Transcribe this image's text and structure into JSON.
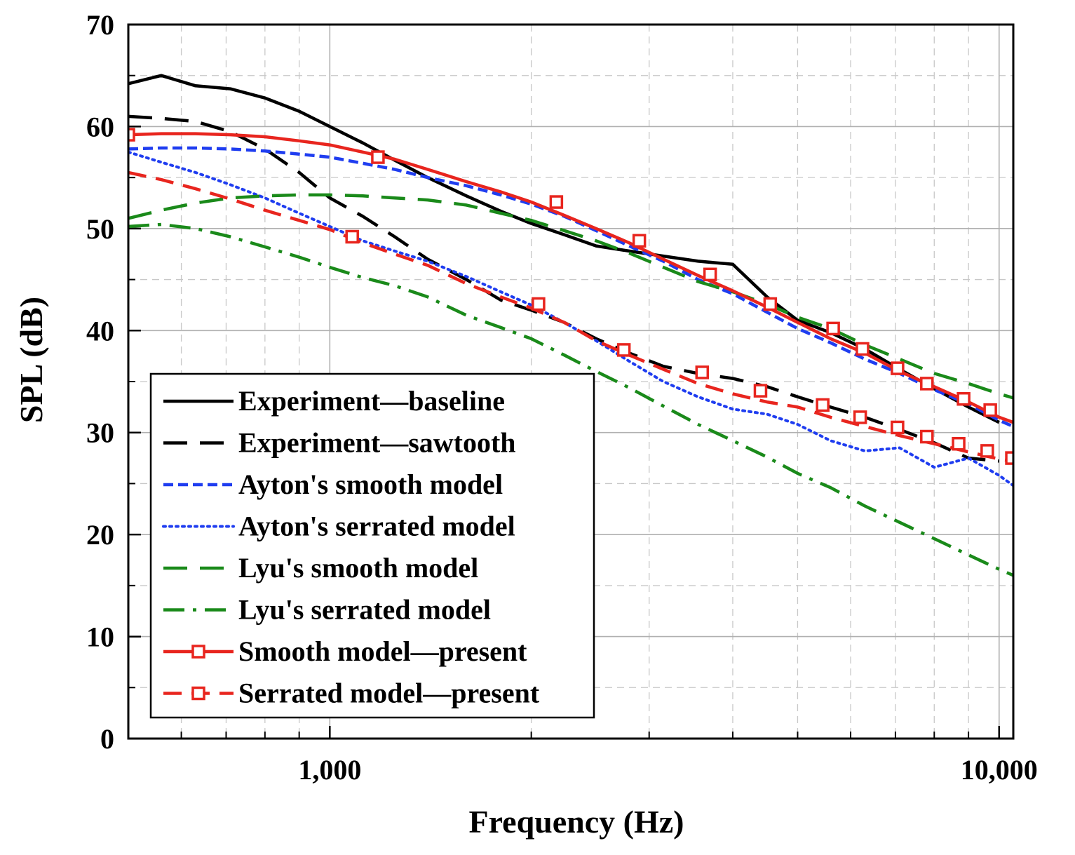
{
  "chart_data": {
    "type": "line",
    "title": "",
    "xlabel": "Frequency (Hz)",
    "ylabel": "SPL (dB)",
    "xscale": "log",
    "xlim": [
      500,
      10500
    ],
    "ylim": [
      0,
      70
    ],
    "grid": true,
    "legend_position": "lower-left",
    "x_major_ticks": [
      {
        "value": 1000,
        "label": "1,000"
      },
      {
        "value": 10000,
        "label": "10,000"
      }
    ],
    "y_ticks": [
      {
        "value": 0,
        "label": "0"
      },
      {
        "value": 10,
        "label": "10"
      },
      {
        "value": 20,
        "label": "20"
      },
      {
        "value": 30,
        "label": "30"
      },
      {
        "value": 40,
        "label": "40"
      },
      {
        "value": 50,
        "label": "50"
      },
      {
        "value": 60,
        "label": "60"
      },
      {
        "value": 70,
        "label": "70"
      }
    ],
    "series": [
      {
        "name": "Experiment—baseline",
        "color": "#000000",
        "dash": "solid",
        "marker": "none",
        "x": [
          500,
          560,
          630,
          710,
          800,
          900,
          1000,
          1120,
          1250,
          1400,
          1600,
          1800,
          2000,
          2240,
          2500,
          2800,
          3150,
          3550,
          4000,
          4500,
          5000,
          5600,
          6300,
          7100,
          8000,
          9000,
          10000
        ],
        "y": [
          64.2,
          65.0,
          64.0,
          63.7,
          62.8,
          61.5,
          60.0,
          58.4,
          56.7,
          55.0,
          53.2,
          51.7,
          50.5,
          49.4,
          48.3,
          47.8,
          47.3,
          46.8,
          46.5,
          43.3,
          41.0,
          39.8,
          38.2,
          36.2,
          34.3,
          32.5,
          31.0
        ]
      },
      {
        "name": "Experiment—sawtooth",
        "color": "#000000",
        "dash": "longdash",
        "marker": "none",
        "x": [
          500,
          560,
          630,
          710,
          800,
          900,
          1000,
          1120,
          1250,
          1400,
          1600,
          1800,
          2000,
          2240,
          2500,
          2800,
          3150,
          3550,
          4000,
          4500,
          5000,
          5600,
          6300,
          7100,
          8000,
          9000,
          10000
        ],
        "y": [
          61.0,
          60.8,
          60.5,
          59.5,
          57.8,
          55.5,
          53.0,
          51.2,
          49.2,
          47.0,
          45.0,
          43.0,
          42.0,
          40.8,
          39.2,
          37.8,
          36.5,
          35.8,
          35.3,
          34.5,
          33.5,
          32.5,
          31.5,
          30.3,
          29.0,
          27.5,
          27.2
        ]
      },
      {
        "name": "Ayton's smooth model",
        "color": "#1f3df0",
        "dash": "shortdash",
        "marker": "none",
        "x": [
          500,
          560,
          630,
          710,
          800,
          900,
          1000,
          1120,
          1250,
          1400,
          1600,
          1800,
          2000,
          2240,
          2500,
          2800,
          3150,
          3550,
          4000,
          4500,
          5000,
          5600,
          6300,
          7100,
          8000,
          9000,
          10000,
          10500
        ],
        "y": [
          57.8,
          57.9,
          57.9,
          57.8,
          57.6,
          57.3,
          57.0,
          56.4,
          55.8,
          55.0,
          54.2,
          53.3,
          52.4,
          51.2,
          49.8,
          48.3,
          46.8,
          45.0,
          43.6,
          41.8,
          40.2,
          38.8,
          37.2,
          35.8,
          34.2,
          32.8,
          31.2,
          30.6
        ]
      },
      {
        "name": "Ayton's serrated model",
        "color": "#1f3df0",
        "dash": "dotted",
        "marker": "none",
        "x": [
          500,
          560,
          630,
          710,
          800,
          900,
          1000,
          1120,
          1250,
          1400,
          1600,
          1800,
          2000,
          2240,
          2500,
          2800,
          3150,
          3550,
          4000,
          4500,
          5000,
          5600,
          6300,
          7100,
          8000,
          9000,
          10000,
          10500
        ],
        "y": [
          57.5,
          56.5,
          55.5,
          54.3,
          53.0,
          51.5,
          50.2,
          48.8,
          47.8,
          46.8,
          45.3,
          43.8,
          42.5,
          40.8,
          39.0,
          37.0,
          35.0,
          33.5,
          32.3,
          31.8,
          30.8,
          29.2,
          28.2,
          28.5,
          26.6,
          27.5,
          25.8,
          24.8
        ]
      },
      {
        "name": "Lyu's smooth model",
        "color": "#1a8a1a",
        "dash": "longdash",
        "marker": "none",
        "x": [
          500,
          560,
          630,
          710,
          800,
          900,
          1000,
          1120,
          1250,
          1400,
          1600,
          1800,
          2000,
          2240,
          2500,
          2800,
          3150,
          3550,
          4000,
          4500,
          5000,
          5600,
          6300,
          7100,
          8000,
          9000,
          10000,
          10500
        ],
        "y": [
          51.0,
          51.8,
          52.5,
          53.0,
          53.2,
          53.3,
          53.3,
          53.2,
          53.0,
          52.8,
          52.3,
          51.5,
          50.8,
          49.8,
          48.8,
          47.6,
          46.2,
          44.8,
          43.8,
          42.6,
          41.3,
          40.2,
          38.6,
          37.2,
          35.8,
          34.8,
          33.8,
          33.4
        ]
      },
      {
        "name": "Lyu's serrated model",
        "color": "#1a8a1a",
        "dash": "dashdot",
        "marker": "none",
        "x": [
          500,
          560,
          630,
          710,
          800,
          900,
          1000,
          1120,
          1250,
          1400,
          1600,
          1800,
          2000,
          2240,
          2500,
          2800,
          3150,
          3550,
          4000,
          4500,
          5000,
          5600,
          6300,
          7100,
          8000,
          9000,
          10000,
          10500
        ],
        "y": [
          50.2,
          50.4,
          50.0,
          49.2,
          48.2,
          47.2,
          46.2,
          45.2,
          44.4,
          43.3,
          41.5,
          40.3,
          39.2,
          37.6,
          36.0,
          34.4,
          32.6,
          30.8,
          29.2,
          27.6,
          26.0,
          24.6,
          22.8,
          21.2,
          19.6,
          18.0,
          16.6,
          16.0
        ]
      },
      {
        "name": "Smooth model—present",
        "color": "#e8251e",
        "dash": "solid",
        "marker": "square",
        "x": [
          500,
          560,
          630,
          710,
          800,
          900,
          1000,
          1120,
          1250,
          1400,
          1600,
          1800,
          2000,
          2240,
          2500,
          2800,
          3150,
          3550,
          4000,
          4500,
          5000,
          5600,
          6300,
          7100,
          8000,
          9000,
          10000,
          10500
        ],
        "y": [
          59.2,
          59.3,
          59.3,
          59.2,
          59.0,
          58.6,
          58.2,
          57.5,
          56.8,
          55.8,
          54.6,
          53.6,
          52.6,
          51.3,
          50.0,
          48.6,
          47.0,
          45.4,
          43.9,
          42.3,
          40.8,
          39.2,
          37.8,
          36.0,
          34.5,
          33.0,
          31.5,
          31.0
        ],
        "markers_x": [
          500,
          1180,
          2180,
          2900,
          3700,
          4550,
          5650,
          6250,
          7050,
          7800,
          8850,
          9700
        ],
        "markers_y": [
          59.2,
          57.0,
          52.6,
          48.8,
          45.5,
          42.6,
          40.2,
          38.2,
          36.3,
          34.8,
          33.3,
          32.2
        ]
      },
      {
        "name": "Serrated model—present",
        "color": "#e8251e",
        "dash": "dash",
        "marker": "square",
        "x": [
          500,
          560,
          630,
          710,
          800,
          900,
          1000,
          1120,
          1250,
          1400,
          1600,
          1800,
          2000,
          2240,
          2500,
          2800,
          3150,
          3550,
          4000,
          4500,
          5000,
          5600,
          6300,
          7100,
          8000,
          9000,
          10000,
          10500
        ],
        "y": [
          55.5,
          54.8,
          53.9,
          52.9,
          51.8,
          50.8,
          49.9,
          48.6,
          47.5,
          46.4,
          44.6,
          43.3,
          42.2,
          40.8,
          39.0,
          37.6,
          36.2,
          34.8,
          33.8,
          33.0,
          32.5,
          31.5,
          30.6,
          29.7,
          28.9,
          28.1,
          27.4,
          27.2
        ],
        "markers_x": [
          1080,
          2050,
          2750,
          3600,
          4400,
          5450,
          6200,
          7050,
          7800,
          8700,
          9600,
          10450
        ],
        "markers_y": [
          49.2,
          42.6,
          38.1,
          35.9,
          34.1,
          32.7,
          31.5,
          30.5,
          29.6,
          28.9,
          28.2,
          27.5
        ]
      }
    ]
  }
}
